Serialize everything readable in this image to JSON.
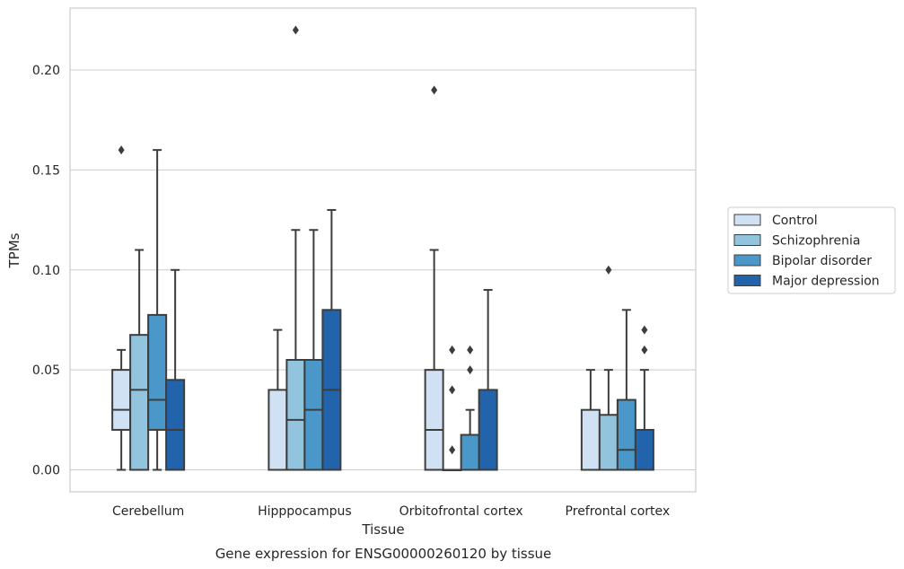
{
  "chart_data": {
    "type": "boxplot",
    "title": "Gene expression for ENSG00000260120 by tissue",
    "xlabel": "Tissue",
    "ylabel": "TPMs",
    "ylim": [
      -0.011,
      0.231
    ],
    "yticks": [
      "0.00",
      "0.05",
      "0.10",
      "0.15",
      "0.20"
    ],
    "categories": [
      "Cerebellum",
      "Hipppocampus",
      "Orbitofrontal cortex",
      "Prefrontal cortex"
    ],
    "grid": true,
    "legend": "outside-right",
    "series": [
      {
        "name": "Control",
        "color": "#cfe1f2",
        "boxes": [
          {
            "q1": 0.02,
            "median": 0.03,
            "q3": 0.05,
            "whislo": 0.0,
            "whishi": 0.06,
            "fliers": [
              0.16
            ]
          },
          {
            "q1": 0.0,
            "median": 0.0,
            "q3": 0.04,
            "whislo": 0.0,
            "whishi": 0.07,
            "fliers": []
          },
          {
            "q1": 0.0,
            "median": 0.02,
            "q3": 0.05,
            "whislo": 0.0,
            "whishi": 0.11,
            "fliers": [
              0.19
            ]
          },
          {
            "q1": 0.0,
            "median": 0.0,
            "q3": 0.03,
            "whislo": 0.0,
            "whishi": 0.05,
            "fliers": []
          }
        ]
      },
      {
        "name": "Schizophrenia",
        "color": "#93c4de",
        "boxes": [
          {
            "q1": 0.0,
            "median": 0.04,
            "q3": 0.0675,
            "whislo": 0.0,
            "whishi": 0.11,
            "fliers": []
          },
          {
            "q1": 0.0,
            "median": 0.025,
            "q3": 0.055,
            "whislo": 0.0,
            "whishi": 0.12,
            "fliers": [
              0.22
            ]
          },
          {
            "q1": 0.0,
            "median": 0.0,
            "q3": 0.0,
            "whislo": 0.0,
            "whishi": 0.0,
            "fliers": [
              0.01,
              0.04,
              0.06
            ]
          },
          {
            "q1": 0.0,
            "median": 0.0,
            "q3": 0.0275,
            "whislo": 0.0,
            "whishi": 0.05,
            "fliers": [
              0.1
            ]
          }
        ]
      },
      {
        "name": "Bipolar disorder",
        "color": "#4a98c9",
        "boxes": [
          {
            "q1": 0.02,
            "median": 0.035,
            "q3": 0.0775,
            "whislo": 0.0,
            "whishi": 0.16,
            "fliers": []
          },
          {
            "q1": 0.0,
            "median": 0.03,
            "q3": 0.055,
            "whislo": 0.0,
            "whishi": 0.12,
            "fliers": []
          },
          {
            "q1": 0.0,
            "median": 0.0,
            "q3": 0.0175,
            "whislo": 0.0,
            "whishi": 0.03,
            "fliers": [
              0.05,
              0.06
            ]
          },
          {
            "q1": 0.0,
            "median": 0.01,
            "q3": 0.035,
            "whislo": 0.0,
            "whishi": 0.08,
            "fliers": []
          }
        ]
      },
      {
        "name": "Major depression",
        "color": "#2164ab",
        "boxes": [
          {
            "q1": 0.0,
            "median": 0.02,
            "q3": 0.045,
            "whislo": 0.0,
            "whishi": 0.1,
            "fliers": []
          },
          {
            "q1": 0.0,
            "median": 0.04,
            "q3": 0.08,
            "whislo": 0.0,
            "whishi": 0.13,
            "fliers": []
          },
          {
            "q1": 0.0,
            "median": 0.0,
            "q3": 0.04,
            "whislo": 0.0,
            "whishi": 0.09,
            "fliers": []
          },
          {
            "q1": 0.0,
            "median": 0.0,
            "q3": 0.02,
            "whislo": 0.0,
            "whishi": 0.05,
            "fliers": [
              0.06,
              0.07
            ]
          }
        ]
      }
    ],
    "colors": {
      "grid": "#cccccc",
      "frame": "#cccccc",
      "box_edge": "#3d3d3d",
      "text": "#262626"
    }
  }
}
